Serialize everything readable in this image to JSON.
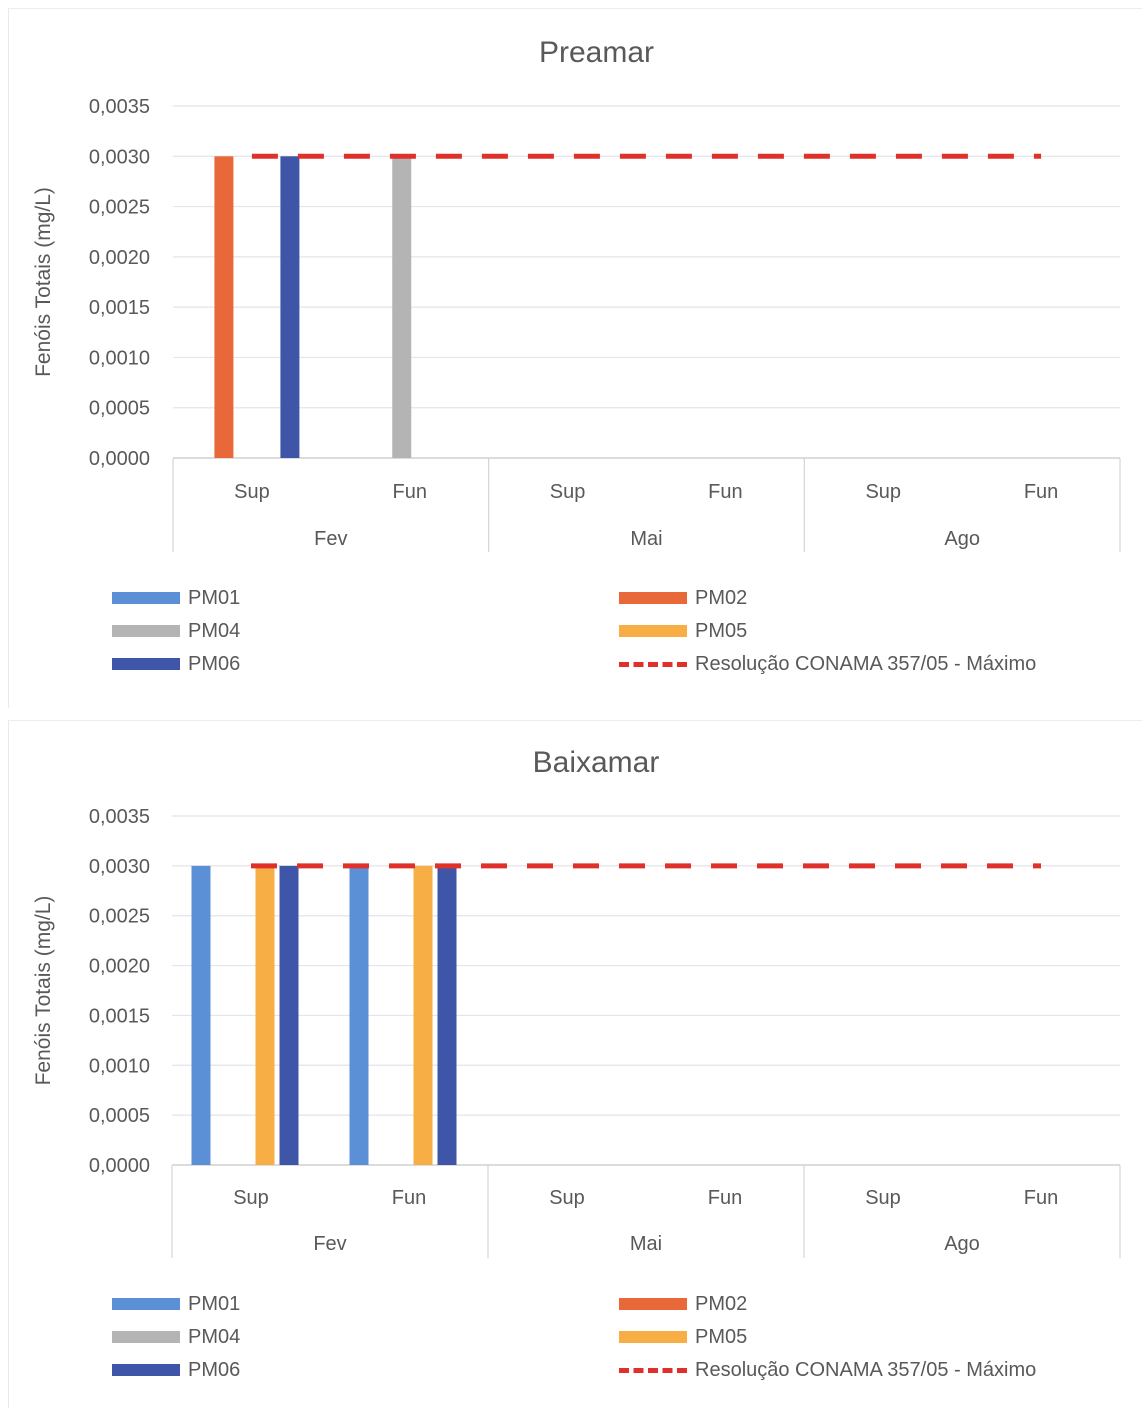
{
  "chart_data": [
    {
      "type": "bar",
      "title": "Preamar",
      "ylabel": "Fenóis Totais (mg/L)",
      "ylim": [
        0,
        0.0035
      ],
      "yticks": [
        "0,0035",
        "0,0030",
        "0,0025",
        "0,0020",
        "0,0015",
        "0,0010",
        "0,0005",
        "0,0000"
      ],
      "ytick_values": [
        0.0035,
        0.003,
        0.0025,
        0.002,
        0.0015,
        0.001,
        0.0005,
        0
      ],
      "groups": [
        "Fev",
        "Mai",
        "Ago"
      ],
      "categories": [
        "Sup",
        "Fun",
        "Sup",
        "Fun",
        "Sup",
        "Fun"
      ],
      "series": [
        {
          "name": "PM01",
          "color": "#5b8fd6",
          "values": [
            0,
            0,
            0,
            0,
            0,
            0
          ]
        },
        {
          "name": "PM02",
          "color": "#e8683a",
          "values": [
            0.003,
            0,
            0,
            0,
            0,
            0
          ]
        },
        {
          "name": "PM04",
          "color": "#b4b4b4",
          "values": [
            0,
            0.003,
            0,
            0,
            0,
            0
          ]
        },
        {
          "name": "PM05",
          "color": "#f7ae45",
          "values": [
            0,
            0,
            0,
            0,
            0,
            0
          ]
        },
        {
          "name": "PM06",
          "color": "#3f55a8",
          "values": [
            0.003,
            0,
            0,
            0,
            0,
            0
          ]
        }
      ],
      "reference_line": {
        "name": "Resolução CONAMA 357/05 - Máximo",
        "value": 0.003,
        "color": "#e0302a",
        "style": "dashed"
      },
      "grid": true,
      "legend_position": "bottom"
    },
    {
      "type": "bar",
      "title": "Baixamar",
      "ylabel": "Fenóis Totais (mg/L)",
      "ylim": [
        0,
        0.0035
      ],
      "yticks": [
        "0,0035",
        "0,0030",
        "0,0025",
        "0,0020",
        "0,0015",
        "0,0010",
        "0,0005",
        "0,0000"
      ],
      "ytick_values": [
        0.0035,
        0.003,
        0.0025,
        0.002,
        0.0015,
        0.001,
        0.0005,
        0
      ],
      "groups": [
        "Fev",
        "Mai",
        "Ago"
      ],
      "categories": [
        "Sup",
        "Fun",
        "Sup",
        "Fun",
        "Sup",
        "Fun"
      ],
      "series": [
        {
          "name": "PM01",
          "color": "#5b8fd6",
          "values": [
            0.003,
            0.003,
            0,
            0,
            0,
            0
          ]
        },
        {
          "name": "PM02",
          "color": "#e8683a",
          "values": [
            0,
            0,
            0,
            0,
            0,
            0
          ]
        },
        {
          "name": "PM04",
          "color": "#b4b4b4",
          "values": [
            0,
            0,
            0,
            0,
            0,
            0
          ]
        },
        {
          "name": "PM05",
          "color": "#f7ae45",
          "values": [
            0.003,
            0.003,
            0,
            0,
            0,
            0
          ]
        },
        {
          "name": "PM06",
          "color": "#3f55a8",
          "values": [
            0.003,
            0.003,
            0,
            0,
            0,
            0
          ]
        }
      ],
      "reference_line": {
        "name": "Resolução CONAMA 357/05 - Máximo",
        "value": 0.003,
        "color": "#e0302a",
        "style": "dashed"
      },
      "grid": true,
      "legend_position": "bottom"
    }
  ]
}
